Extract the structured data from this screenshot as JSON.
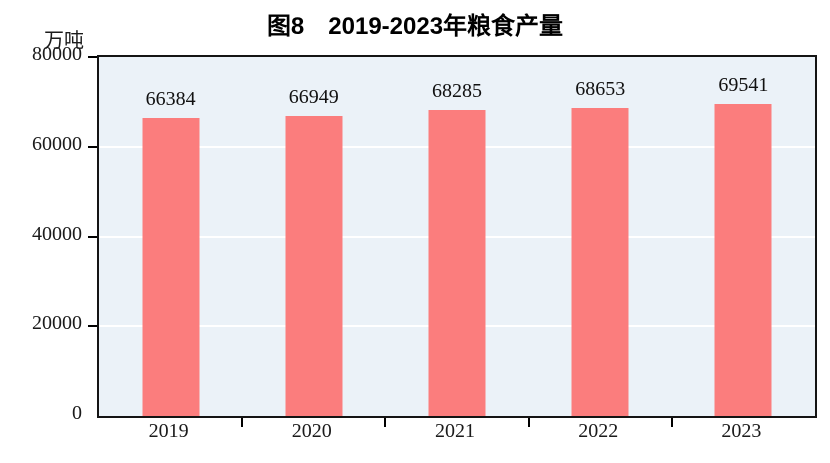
{
  "title": "图8　2019-2023年粮食产量",
  "unit_label": "万吨",
  "chart_data": {
    "type": "bar",
    "title": "图8　2019-2023年粮食产量",
    "categories": [
      "2019",
      "2020",
      "2021",
      "2022",
      "2023"
    ],
    "values": [
      66384,
      66949,
      68285,
      68653,
      69541
    ],
    "xlabel": "",
    "ylabel": "万吨",
    "ylim": [
      0,
      80000
    ],
    "yticks": [
      0,
      20000,
      40000,
      60000,
      80000
    ],
    "grid": true,
    "gridline_color": "#ffffff",
    "legend": false,
    "data_labels": true,
    "bar_color": "#FB7D7D",
    "plot_bg": "#EBF2F8",
    "axis_color": "#141414"
  }
}
